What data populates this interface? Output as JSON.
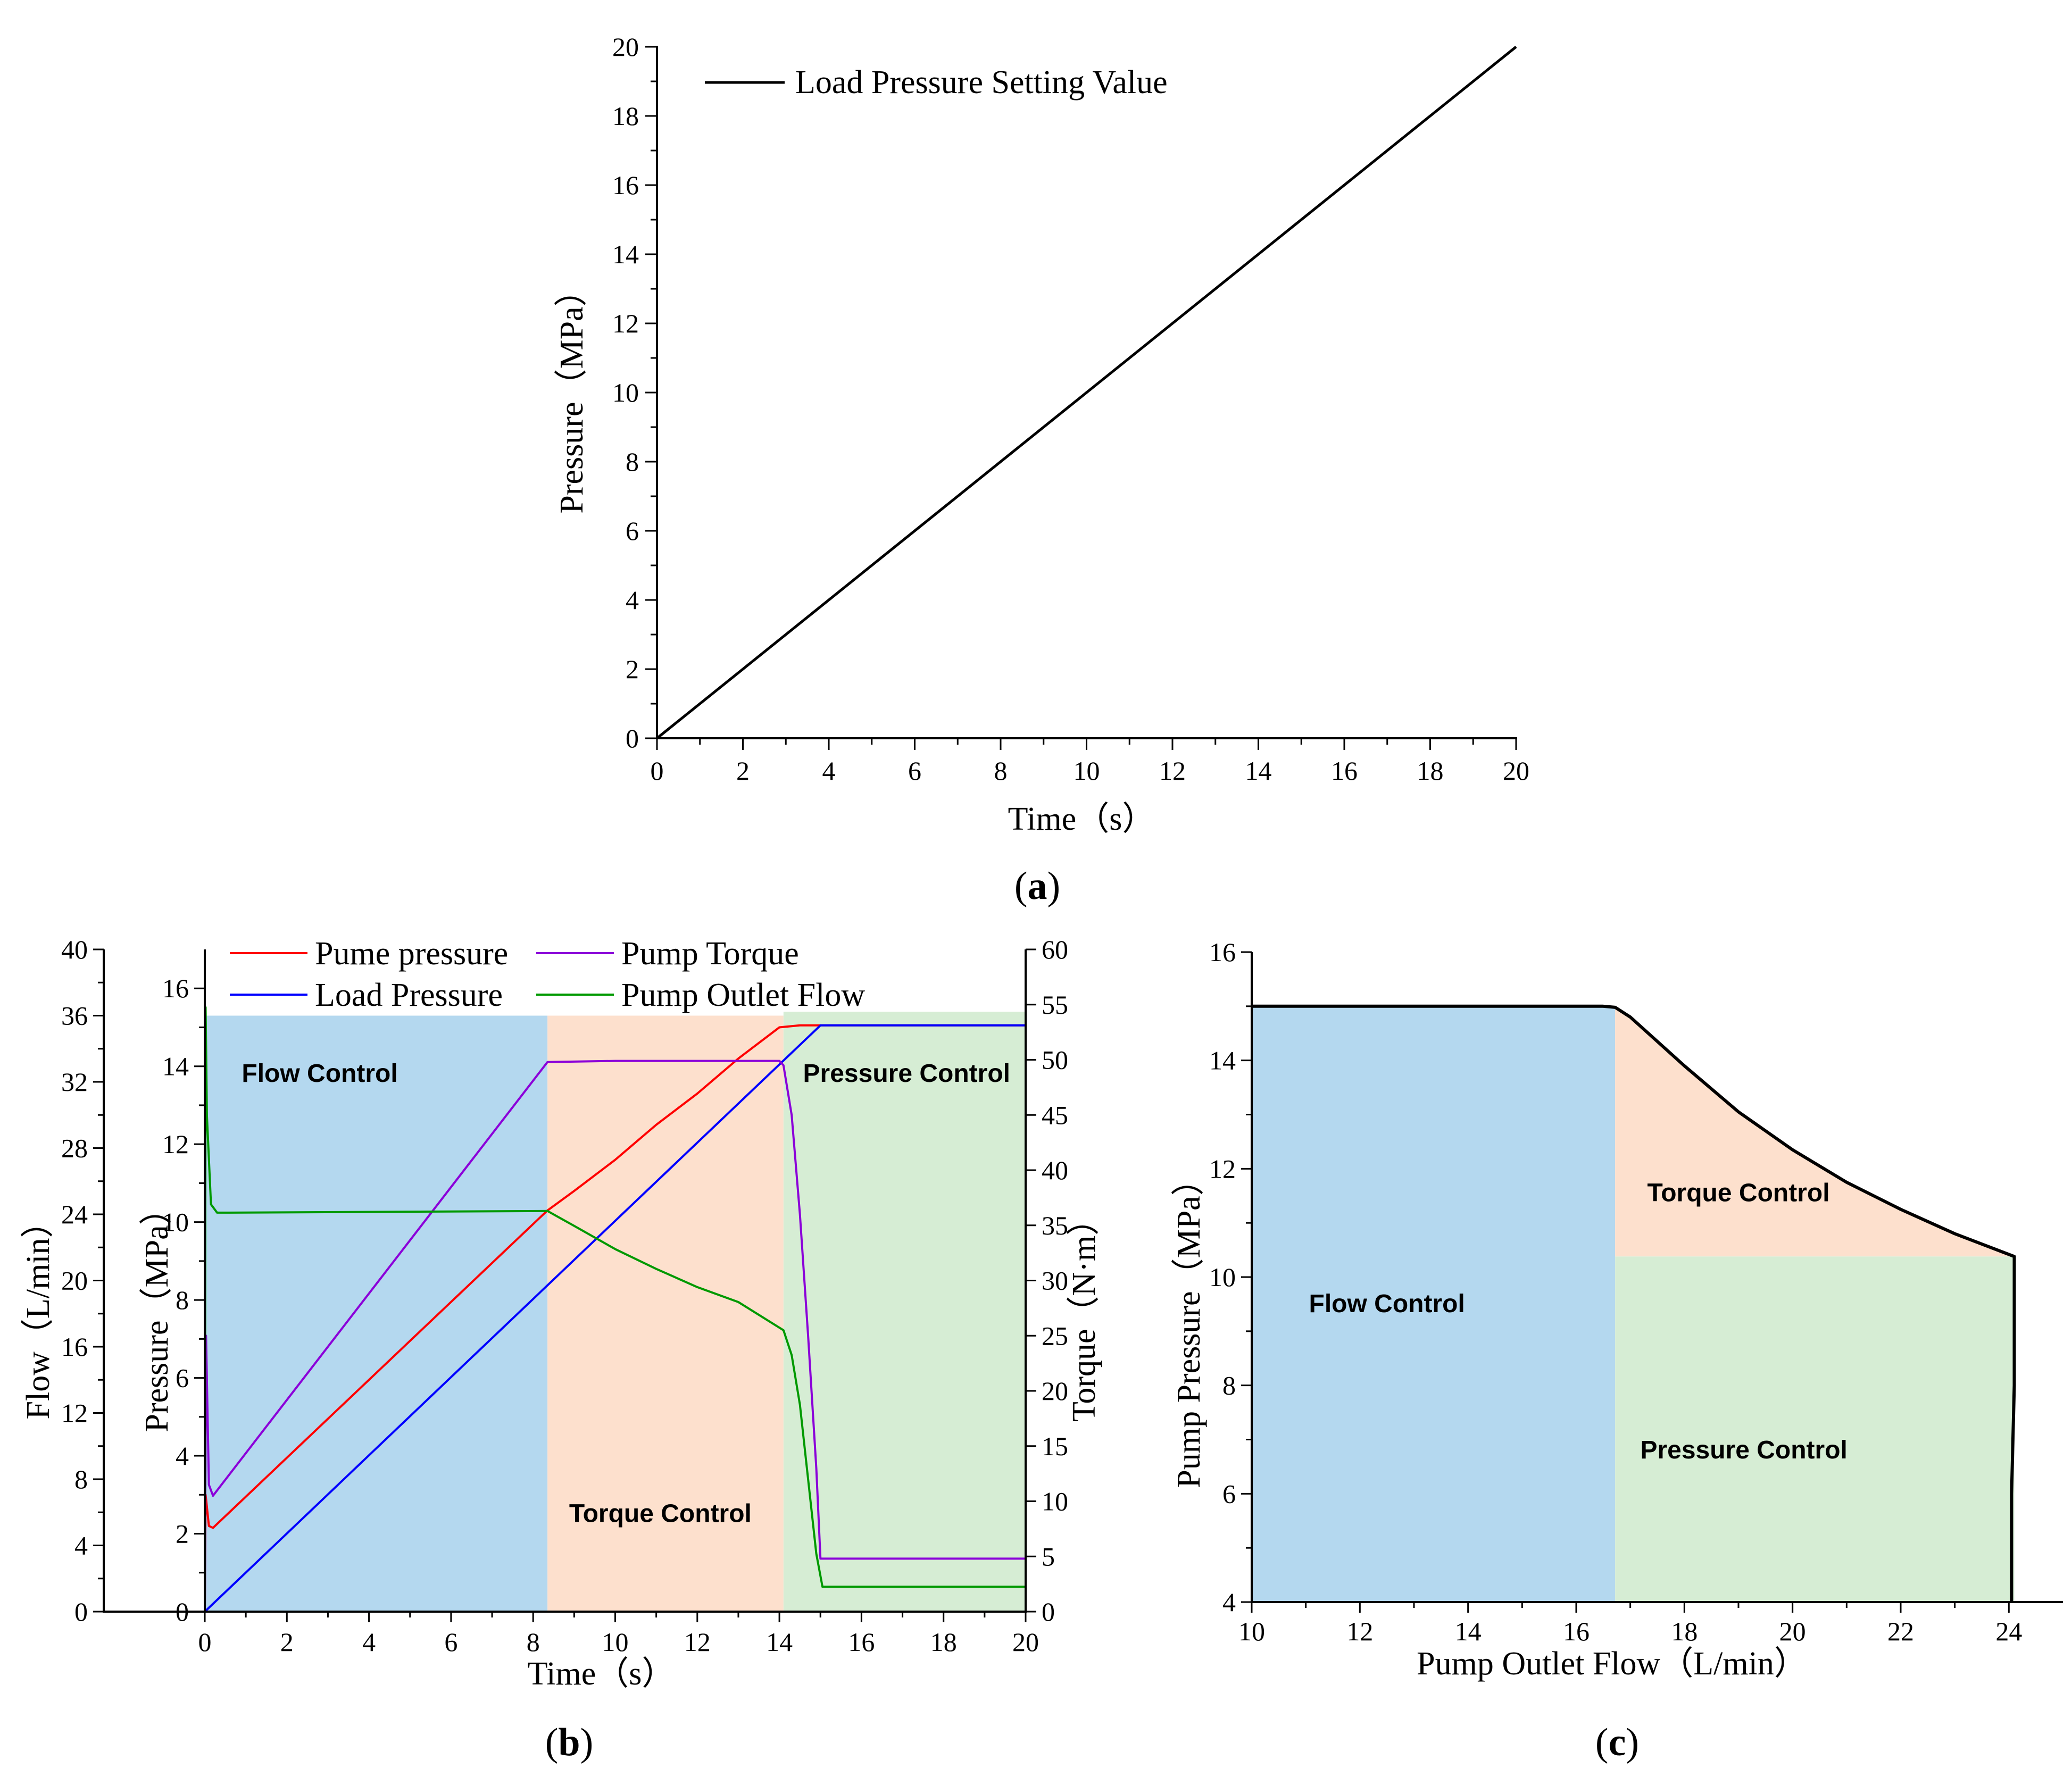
{
  "colors": {
    "axis": "#000000",
    "flow_fill": "#b4d8ef",
    "torque_fill": "#fde0cd",
    "pressure_fill": "#d6edd4",
    "pump_pressure": "#ff0000",
    "load_pressure": "#0000ff",
    "pump_torque": "#8b00d9",
    "pump_outlet_flow": "#009900"
  },
  "panels": {
    "a": {
      "open": "(",
      "letter": "a",
      "close": ")"
    },
    "b": {
      "open": "(",
      "letter": "b",
      "close": ")"
    },
    "c": {
      "open": "(",
      "letter": "c",
      "close": ")"
    }
  },
  "chart_data": [
    {
      "id": "a",
      "type": "line",
      "title": "",
      "xlabel": "Time（s）",
      "ylabel": "Pressure（MPa）",
      "xlim": [
        0,
        20
      ],
      "ylim": [
        0,
        20
      ],
      "xticks": [
        0,
        2,
        4,
        6,
        8,
        10,
        12,
        14,
        16,
        18,
        20
      ],
      "yticks": [
        0,
        2,
        4,
        6,
        8,
        10,
        12,
        14,
        16,
        18,
        20
      ],
      "series": [
        {
          "name": "Load Pressure Setting Value",
          "x": [
            0,
            20
          ],
          "y": [
            0,
            20
          ]
        }
      ],
      "legend_position": "top-left"
    },
    {
      "id": "b",
      "type": "line",
      "xlabel": "Time（s）",
      "ylabel": "Pressure（MPa）",
      "ylabel_outer": "Flow（L/min）",
      "ylabel_right": "Torque（N·m）",
      "xlim": [
        0,
        20
      ],
      "ylim": [
        0,
        17
      ],
      "ylim_outer": [
        0,
        40
      ],
      "ylim_right": [
        0,
        60
      ],
      "xticks": [
        0,
        2,
        4,
        6,
        8,
        10,
        12,
        14,
        16,
        18,
        20
      ],
      "yticks": [
        0,
        2,
        4,
        6,
        8,
        10,
        12,
        14,
        16
      ],
      "yticks_outer": [
        0,
        4,
        8,
        12,
        16,
        20,
        24,
        28,
        32,
        36,
        40
      ],
      "yticks_right": [
        0,
        5,
        10,
        15,
        20,
        25,
        30,
        35,
        40,
        45,
        50,
        55,
        60
      ],
      "regions": [
        {
          "label": "Flow Control",
          "x": [
            0,
            8.35
          ],
          "y_top": 15.3
        },
        {
          "label": "Torque Control",
          "x": [
            8.35,
            14.1
          ],
          "y_top": 15.3
        },
        {
          "label": "Pressure Control",
          "x": [
            14.1,
            20
          ],
          "y_top": 15.4
        }
      ],
      "series": [
        {
          "name": "Pume pressure",
          "axis": "pressure",
          "x": [
            0,
            0.02,
            0.1,
            0.2,
            8.35,
            9.0,
            10.0,
            11.0,
            12.0,
            13.0,
            14.0,
            14.5,
            15.0,
            20
          ],
          "y": [
            0,
            3.0,
            2.2,
            2.15,
            10.3,
            10.8,
            11.6,
            12.5,
            13.3,
            14.2,
            15.0,
            15.05,
            15.05,
            15.05
          ]
        },
        {
          "name": "Load Pressure",
          "axis": "pressure",
          "x": [
            0,
            15.0,
            20
          ],
          "y": [
            0,
            15.05,
            15.05
          ]
        },
        {
          "name": "Pump Torque",
          "axis": "torque",
          "x": [
            0,
            0.03,
            0.1,
            0.2,
            8.35,
            10.0,
            14.0,
            14.1,
            14.3,
            14.5,
            14.7,
            14.9,
            15.0,
            20
          ],
          "y": [
            0,
            25.0,
            11.5,
            10.5,
            49.8,
            49.9,
            49.9,
            49.5,
            45.0,
            36.0,
            25.0,
            13.0,
            4.8,
            4.8
          ]
        },
        {
          "name": "Pump Outlet Flow",
          "axis": "flow",
          "x": [
            0,
            0.02,
            0.05,
            0.15,
            0.3,
            0.6,
            8.35,
            9.0,
            10.0,
            11.0,
            12.0,
            13.0,
            14.1,
            14.3,
            14.5,
            14.7,
            14.9,
            15.05,
            20
          ],
          "y": [
            0,
            36.5,
            30.0,
            24.6,
            24.1,
            24.1,
            24.2,
            23.3,
            21.9,
            20.7,
            19.6,
            18.7,
            17.0,
            15.5,
            12.5,
            8.0,
            3.5,
            1.5,
            1.5
          ]
        }
      ],
      "legend_position": "top"
    },
    {
      "id": "c",
      "type": "area",
      "xlabel": "Pump Outlet Flow（L/min）",
      "ylabel": "Pump Pressure（MPa）",
      "xlim": [
        10,
        25
      ],
      "ylim": [
        4,
        16
      ],
      "xticks": [
        10,
        12,
        14,
        16,
        18,
        20,
        22,
        24
      ],
      "yticks": [
        4,
        6,
        8,
        10,
        12,
        14,
        16
      ],
      "regions": [
        {
          "label": "Flow Control"
        },
        {
          "label": "Torque Control"
        },
        {
          "label": "Pressure Control"
        }
      ],
      "boundary": {
        "x": [
          10,
          16.5,
          16.72,
          17.0,
          18.0,
          19.0,
          20.0,
          21.0,
          22.0,
          23.0,
          24.1,
          24.1,
          24.05,
          24.05
        ],
        "y": [
          15.0,
          15.0,
          14.98,
          14.8,
          13.9,
          13.05,
          12.35,
          11.75,
          11.25,
          10.8,
          10.38,
          8.0,
          6.0,
          4.0
        ]
      },
      "split_flow": 16.72,
      "split_pressure": 10.38,
      "max_flow": 24.1
    }
  ]
}
